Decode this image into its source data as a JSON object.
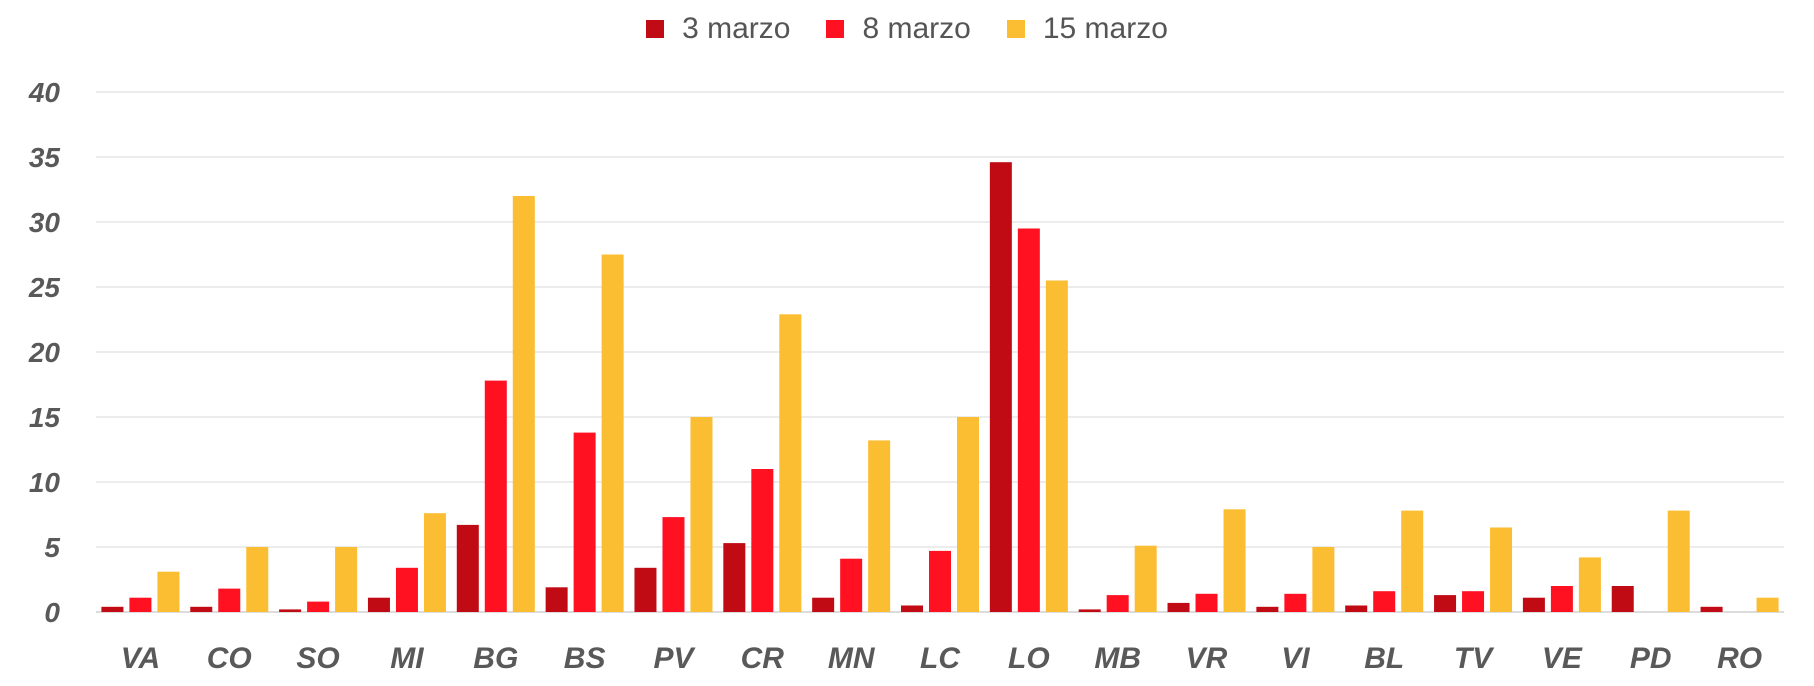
{
  "chart_data": {
    "type": "bar",
    "categories": [
      "VA",
      "CO",
      "SO",
      "MI",
      "BG",
      "BS",
      "PV",
      "CR",
      "MN",
      "LC",
      "LO",
      "MB",
      "VR",
      "VI",
      "BL",
      "TV",
      "VE",
      "PD",
      "RO"
    ],
    "series": [
      {
        "name": "3 marzo",
        "color": "#c00a14",
        "values": [
          0.4,
          0.4,
          0.2,
          1.1,
          6.7,
          1.9,
          3.4,
          5.3,
          1.1,
          0.5,
          34.6,
          0.2,
          0.7,
          0.4,
          0.5,
          1.3,
          1.1,
          2.0,
          0.4
        ]
      },
      {
        "name": "8 marzo",
        "color": "#ff1122",
        "values": [
          1.1,
          1.8,
          0.8,
          3.4,
          17.8,
          13.8,
          7.3,
          11.0,
          4.1,
          4.7,
          29.5,
          1.3,
          1.4,
          1.4,
          1.6,
          1.6,
          2.0,
          0.0,
          0.0
        ]
      },
      {
        "name": "15 marzo",
        "color": "#fbbd31",
        "values": [
          3.1,
          5.0,
          5.0,
          7.6,
          32.0,
          27.5,
          15.0,
          22.9,
          13.2,
          15.0,
          25.5,
          5.1,
          7.9,
          5.0,
          7.8,
          6.5,
          4.2,
          7.8,
          1.1
        ]
      }
    ],
    "yticks": [
      "0",
      "5",
      "10",
      "15",
      "20",
      "25",
      "30",
      "35",
      "40"
    ],
    "ylim": [
      0,
      40
    ],
    "grid": true,
    "legend_position": "top-center"
  }
}
